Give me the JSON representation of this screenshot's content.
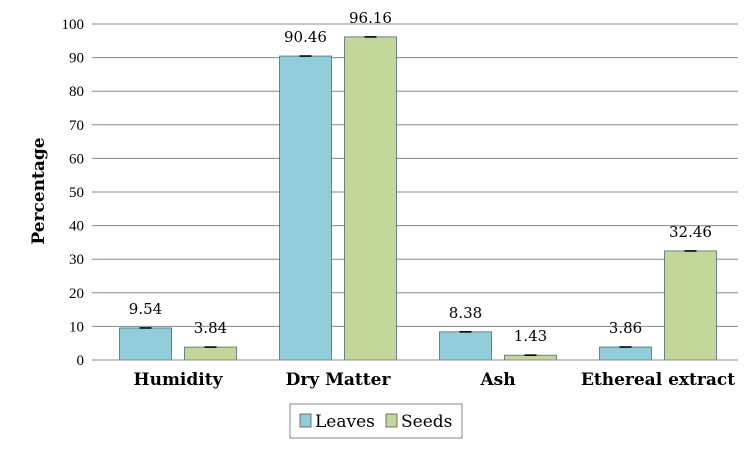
{
  "chart_data": {
    "type": "bar",
    "title": "",
    "xlabel": "",
    "ylabel": "Percentage",
    "ylim": [
      0,
      100
    ],
    "ytick_step": 10,
    "grid": true,
    "legend_position": "bottom",
    "categories": [
      "Humidity",
      "Dry Matter",
      "Ash",
      "Ethereal extract"
    ],
    "series": [
      {
        "name": "Leaves",
        "color": "#92cddc",
        "values": [
          9.54,
          90.46,
          8.38,
          3.86
        ],
        "labels": [
          "9.54",
          "90.46",
          "8.38",
          "3.86"
        ]
      },
      {
        "name": "Seeds",
        "color": "#c4d79b",
        "values": [
          3.84,
          96.16,
          1.43,
          32.46
        ],
        "labels": [
          "3.84",
          "96.16",
          "1.43",
          "32.46"
        ]
      }
    ]
  }
}
